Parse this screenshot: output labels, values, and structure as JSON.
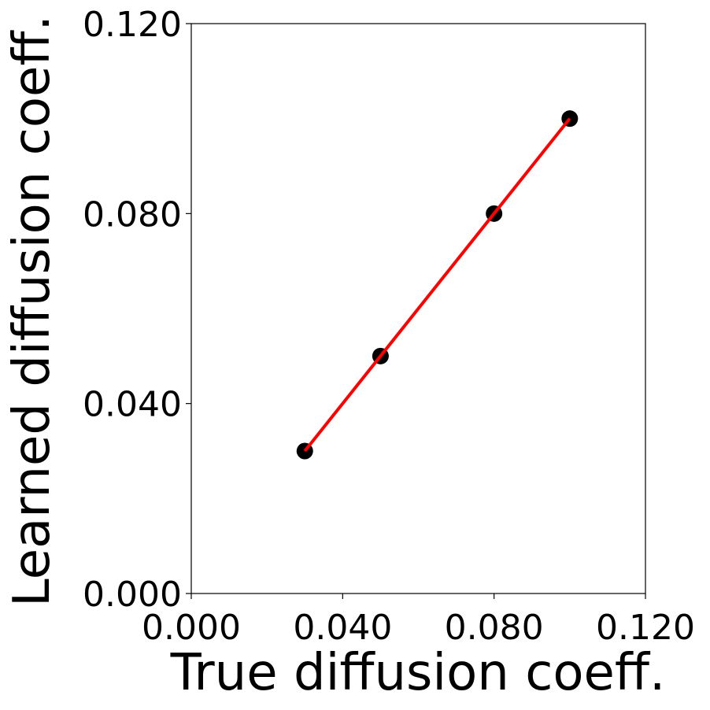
{
  "chart_data": {
    "type": "scatter",
    "xlabel": "True diffusion coeff.",
    "ylabel": "Learned diffusion coeff.",
    "xlim": [
      0.0,
      0.12
    ],
    "ylim": [
      0.0,
      0.12
    ],
    "xticks": [
      "0.000",
      "0.040",
      "0.080",
      "0.120"
    ],
    "yticks": [
      "0.000",
      "0.040",
      "0.080",
      "0.120"
    ],
    "xtick_values": [
      0.0,
      0.04,
      0.08,
      0.12
    ],
    "ytick_values": [
      0.0,
      0.04,
      0.08,
      0.12
    ],
    "grid": false,
    "series": [
      {
        "type": "scatter",
        "color": "#000000",
        "x": [
          0.03,
          0.05,
          0.08,
          0.1
        ],
        "y": [
          0.03,
          0.05,
          0.08,
          0.1
        ]
      },
      {
        "type": "line",
        "color": "#ff0000",
        "x": [
          0.03,
          0.1
        ],
        "y": [
          0.03,
          0.1
        ]
      }
    ]
  }
}
